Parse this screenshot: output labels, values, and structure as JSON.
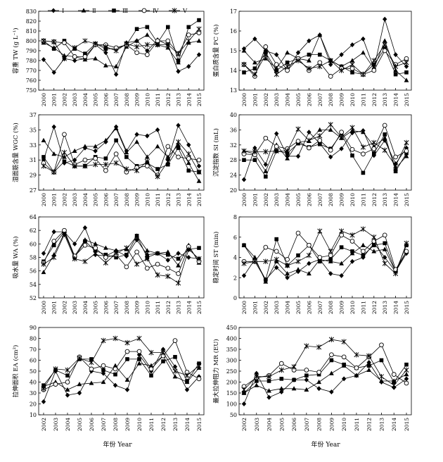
{
  "legend": [
    {
      "label": "Ⅰ",
      "marker": "diamond"
    },
    {
      "label": "Ⅱ",
      "marker": "triangle"
    },
    {
      "label": "Ⅲ",
      "marker": "square"
    },
    {
      "label": "Ⅳ",
      "marker": "circle-open"
    },
    {
      "label": "Ⅴ",
      "marker": "star"
    }
  ],
  "xlabels": {
    "left": "年份 Year",
    "right": "年份 Year"
  },
  "chart_data": [
    {
      "type": "line",
      "ylabel": "容重 TW (g L⁻¹)",
      "ylim": [
        750,
        830
      ],
      "yticks": [
        750,
        760,
        770,
        780,
        790,
        800,
        810,
        820,
        830
      ],
      "x": [
        "2000",
        "2001",
        "2002",
        "2003",
        "2004",
        "2005",
        "2006",
        "2007",
        "2008",
        "2009",
        "2010",
        "2011",
        "2012",
        "2013",
        "2014",
        "2015"
      ],
      "series": [
        {
          "name": "Ⅰ",
          "values": [
            781,
            768,
            782,
            780,
            782,
            796,
            788,
            766,
            798,
            800,
            790,
            801,
            796,
            769,
            774,
            786
          ]
        },
        {
          "name": "Ⅱ",
          "values": [
            798,
            793,
            785,
            784,
            781,
            782,
            775,
            774,
            794,
            800,
            806,
            796,
            793,
            778,
            798,
            800
          ]
        },
        {
          "name": "Ⅲ",
          "values": [
            800,
            792,
            800,
            792,
            787,
            797,
            792,
            792,
            796,
            812,
            814,
            798,
            814,
            780,
            814,
            821
          ]
        },
        {
          "name": "Ⅳ",
          "values": [
            800,
            799,
            798,
            784,
            784,
            796,
            796,
            793,
            796,
            788,
            786,
            800,
            800,
            787,
            806,
            808
          ]
        },
        {
          "name": "Ⅴ",
          "values": [
            800,
            799,
            782,
            793,
            800,
            797,
            794,
            790,
            797,
            794,
            796,
            796,
            796,
            787,
            800,
            812
          ]
        }
      ]
    },
    {
      "type": "line",
      "ylabel": "蛋白质含量 PC (%)",
      "ylim": [
        13,
        17
      ],
      "yticks": [
        13,
        14,
        15,
        16,
        17
      ],
      "x": [
        "2000",
        "2001",
        "2002",
        "2003",
        "2004",
        "2005",
        "2006",
        "2007",
        "2008",
        "2009",
        "2010",
        "2011",
        "2012",
        "2013",
        "2014",
        "2015"
      ],
      "series": [
        {
          "name": "Ⅰ",
          "values": [
            15.1,
            15.6,
            15.0,
            14.8,
            14.0,
            14.9,
            15.5,
            15.8,
            14.3,
            14.8,
            15.3,
            15.6,
            14.1,
            16.6,
            14.8,
            14.2
          ]
        },
        {
          "name": "Ⅱ",
          "values": [
            15.0,
            14.4,
            14.6,
            14.1,
            14.9,
            14.6,
            14.5,
            15.8,
            14.5,
            14.2,
            14.5,
            14.9,
            14.1,
            15.5,
            14.0,
            13.5
          ]
        },
        {
          "name": "Ⅲ",
          "values": [
            13.9,
            14.1,
            14.9,
            14.0,
            14.4,
            14.6,
            14.8,
            14.8,
            14.5,
            14.2,
            13.9,
            13.8,
            14.3,
            15.1,
            13.8,
            13.9
          ]
        },
        {
          "name": "Ⅳ",
          "values": [
            14.3,
            13.7,
            15.2,
            14.3,
            14.0,
            14.6,
            14.0,
            14.4,
            13.7,
            14.1,
            14.1,
            13.8,
            14.0,
            15.0,
            14.3,
            14.6
          ]
        },
        {
          "name": "Ⅴ",
          "values": [
            14.3,
            13.8,
            14.8,
            13.8,
            14.2,
            14.5,
            14.1,
            14.2,
            14.5,
            14.0,
            14.3,
            13.8,
            14.5,
            15.3,
            14.2,
            14.4
          ]
        }
      ]
    },
    {
      "type": "line",
      "ylabel": "湿面筋含量 WGC (%)",
      "ylim": [
        27,
        37
      ],
      "yticks": [
        27,
        29,
        31,
        33,
        35,
        37
      ],
      "x": [
        "2000",
        "2001",
        "2002",
        "2003",
        "2004",
        "2005",
        "2006",
        "2007",
        "2008",
        "2009",
        "2010",
        "2011",
        "2012",
        "2013",
        "2014",
        "2015"
      ],
      "series": [
        {
          "name": "Ⅰ",
          "values": [
            31.0,
            35.4,
            30.6,
            31.0,
            32.6,
            32.2,
            33.4,
            35.4,
            32.2,
            34.4,
            34.2,
            35.0,
            31.0,
            35.6,
            33.0,
            30.2
          ]
        },
        {
          "name": "Ⅱ",
          "values": [
            33.6,
            31.8,
            31.4,
            32.2,
            32.8,
            32.8,
            33.6,
            35.2,
            32.0,
            33.4,
            31.4,
            32.8,
            31.4,
            33.0,
            30.6,
            28.2
          ]
        },
        {
          "name": "Ⅲ",
          "values": [
            31.4,
            29.4,
            30.8,
            30.2,
            30.2,
            31.4,
            31.2,
            33.6,
            31.4,
            30.2,
            30.6,
            29.8,
            30.4,
            32.6,
            29.6,
            29.4
          ]
        },
        {
          "name": "Ⅳ",
          "values": [
            30.6,
            29.4,
            34.4,
            30.4,
            31.0,
            31.2,
            29.6,
            31.8,
            29.4,
            30.0,
            30.2,
            29.0,
            32.8,
            31.4,
            31.2,
            31.0
          ]
        },
        {
          "name": "Ⅴ",
          "values": [
            30.2,
            29.4,
            32.0,
            30.2,
            30.2,
            30.4,
            30.4,
            30.6,
            29.8,
            29.6,
            30.8,
            28.8,
            30.8,
            33.4,
            31.8,
            29.4
          ]
        }
      ]
    },
    {
      "type": "line",
      "ylabel": "沉淀指数 SI (mL)",
      "ylim": [
        20,
        40
      ],
      "yticks": [
        20,
        24,
        28,
        32,
        36,
        40
      ],
      "x": [
        "2000",
        "2001",
        "2002",
        "2003",
        "2004",
        "2005",
        "2006",
        "2007",
        "2008",
        "2009",
        "2010",
        "2011",
        "2012",
        "2013",
        "2014",
        "2015"
      ],
      "series": [
        {
          "name": "Ⅰ",
          "values": [
            22.8,
            31.2,
            26.8,
            35.0,
            29.0,
            29.0,
            35.4,
            32.4,
            28.8,
            31.0,
            35.2,
            35.8,
            29.2,
            33.2,
            27.0,
            31.2
          ]
        },
        {
          "name": "Ⅱ",
          "values": [
            30.4,
            29.6,
            25.0,
            32.0,
            28.4,
            32.8,
            33.0,
            36.0,
            36.0,
            33.8,
            35.8,
            35.4,
            31.6,
            33.8,
            25.8,
            29.0
          ]
        },
        {
          "name": "Ⅲ",
          "values": [
            28.0,
            28.0,
            23.6,
            30.4,
            29.8,
            32.4,
            31.4,
            32.2,
            31.0,
            35.0,
            29.2,
            24.6,
            29.8,
            34.8,
            25.0,
            29.8
          ]
        },
        {
          "name": "Ⅳ",
          "values": [
            29.6,
            29.4,
            33.8,
            31.6,
            31.0,
            33.0,
            31.2,
            33.2,
            30.6,
            35.4,
            30.8,
            29.6,
            31.0,
            37.2,
            28.8,
            30.4
          ]
        },
        {
          "name": "Ⅴ",
          "values": [
            30.4,
            30.2,
            30.2,
            30.4,
            30.4,
            36.2,
            33.2,
            34.4,
            37.4,
            34.0,
            36.6,
            31.4,
            32.6,
            30.6,
            26.4,
            32.6
          ]
        }
      ]
    },
    {
      "type": "line",
      "ylabel": "吸水量 WA (%)",
      "ylim": [
        52,
        64
      ],
      "yticks": [
        52,
        54,
        56,
        58,
        60,
        62,
        64
      ],
      "x": [
        "2000",
        "2001",
        "2002",
        "2003",
        "2004",
        "2005",
        "2006",
        "2007",
        "2008",
        "2009",
        "2010",
        "2011",
        "2012",
        "2013",
        "2014",
        "2015"
      ],
      "series": [
        {
          "name": "Ⅰ",
          "values": [
            58.6,
            61.8,
            61.8,
            60.0,
            62.4,
            58.4,
            58.2,
            59.0,
            58.2,
            60.6,
            58.4,
            58.6,
            57.6,
            58.6,
            58.0,
            57.8
          ]
        },
        {
          "name": "Ⅱ",
          "values": [
            55.8,
            58.4,
            61.6,
            58.2,
            60.6,
            60.0,
            59.4,
            59.0,
            59.2,
            61.2,
            59.0,
            58.6,
            58.8,
            56.8,
            59.8,
            57.2
          ]
        },
        {
          "name": "Ⅲ",
          "values": [
            57.4,
            59.8,
            61.8,
            58.0,
            60.4,
            59.0,
            58.4,
            58.0,
            58.4,
            61.2,
            58.0,
            58.6,
            58.4,
            57.8,
            59.2,
            59.4
          ]
        },
        {
          "name": "Ⅳ",
          "values": [
            57.2,
            60.4,
            62.0,
            58.2,
            59.8,
            59.4,
            58.0,
            58.4,
            56.6,
            58.8,
            56.4,
            57.0,
            56.4,
            55.6,
            59.6,
            57.4
          ]
        },
        {
          "name": "Ⅴ",
          "values": [
            57.0,
            58.0,
            61.4,
            57.8,
            57.4,
            58.6,
            57.2,
            58.6,
            59.4,
            57.0,
            57.8,
            55.4,
            55.2,
            54.2,
            59.2,
            57.8
          ]
        }
      ]
    },
    {
      "type": "line",
      "ylabel": "稳定时间 ST (min)",
      "ylim": [
        0,
        8
      ],
      "yticks": [
        0,
        2,
        4,
        6,
        8
      ],
      "x": [
        "2000",
        "2001",
        "2002",
        "2003",
        "2004",
        "2005",
        "2006",
        "2007",
        "2008",
        "2009",
        "2010",
        "2011",
        "2012",
        "2013",
        "2014",
        "2015"
      ],
      "series": [
        {
          "name": "Ⅰ",
          "values": [
            2.2,
            3.8,
            1.8,
            3.0,
            2.0,
            2.6,
            3.4,
            3.8,
            2.4,
            2.2,
            3.6,
            4.0,
            5.4,
            4.0,
            2.6,
            4.4
          ]
        },
        {
          "name": "Ⅱ",
          "values": [
            5.2,
            4.0,
            1.6,
            3.6,
            2.4,
            2.8,
            2.4,
            3.8,
            3.6,
            3.4,
            4.4,
            5.2,
            4.6,
            4.8,
            2.6,
            4.6
          ]
        },
        {
          "name": "Ⅲ",
          "values": [
            5.2,
            3.6,
            1.8,
            5.8,
            3.2,
            4.2,
            5.2,
            3.6,
            3.8,
            5.0,
            4.6,
            4.2,
            5.2,
            5.4,
            2.6,
            5.2
          ]
        },
        {
          "name": "Ⅳ",
          "values": [
            3.6,
            3.6,
            5.0,
            4.6,
            3.8,
            6.4,
            5.2,
            4.0,
            4.2,
            6.2,
            5.6,
            4.6,
            5.6,
            6.2,
            2.8,
            4.6
          ]
        },
        {
          "name": "Ⅴ",
          "values": [
            3.4,
            3.6,
            3.6,
            3.8,
            3.2,
            3.6,
            4.2,
            6.6,
            4.6,
            6.6,
            6.2,
            6.8,
            6.0,
            3.4,
            2.4,
            5.4
          ]
        }
      ]
    },
    {
      "type": "line",
      "ylabel": "拉伸面积 EA (cm²)",
      "ylim": [
        10,
        90
      ],
      "yticks": [
        10,
        20,
        30,
        40,
        50,
        60,
        70,
        80,
        90
      ],
      "x": [
        "2002",
        "2003",
        "2004",
        "2005",
        "2006",
        "2007",
        "2008",
        "2009",
        "2010",
        "2011",
        "2012",
        "2013",
        "2014",
        "2015"
      ],
      "series": [
        {
          "name": "Ⅰ",
          "values": [
            22,
            50,
            28,
            30,
            50,
            48,
            37,
            33,
            65,
            50,
            70,
            54,
            33,
            45
          ]
        },
        {
          "name": "Ⅱ",
          "values": [
            36,
            40,
            33,
            38,
            39,
            40,
            55,
            42,
            57,
            55,
            64,
            45,
            40,
            53
          ]
        },
        {
          "name": "Ⅲ",
          "values": [
            37,
            51,
            46,
            61,
            61,
            51,
            47,
            61,
            61,
            46,
            59,
            63,
            41,
            57
          ]
        },
        {
          "name": "Ⅳ",
          "values": [
            33,
            38,
            40,
            63,
            52,
            55,
            52,
            68,
            68,
            52,
            64,
            78,
            49,
            43
          ]
        },
        {
          "name": "Ⅴ",
          "values": [
            34,
            52,
            51,
            62,
            58,
            78,
            80,
            76,
            80,
            67,
            67,
            50,
            46,
            55
          ]
        }
      ]
    },
    {
      "type": "line",
      "ylabel": "最大拉伸阻力 MR (EU)",
      "ylim": [
        50,
        450
      ],
      "yticks": [
        50,
        100,
        150,
        200,
        250,
        300,
        350,
        400,
        450
      ],
      "x": [
        "2002",
        "2003",
        "2004",
        "2005",
        "2006",
        "2007",
        "2008",
        "2009",
        "2010",
        "2011",
        "2012",
        "2013",
        "2014",
        "2015"
      ],
      "series": [
        {
          "name": "Ⅰ",
          "values": [
            100,
            240,
            130,
            155,
            210,
            210,
            170,
            155,
            215,
            230,
            290,
            200,
            175,
            215
          ]
        },
        {
          "name": "Ⅱ",
          "values": [
            150,
            185,
            160,
            170,
            170,
            165,
            200,
            240,
            275,
            230,
            255,
            205,
            205,
            235
          ]
        },
        {
          "name": "Ⅲ",
          "values": [
            150,
            205,
            205,
            215,
            210,
            230,
            235,
            300,
            280,
            265,
            275,
            300,
            200,
            280
          ]
        },
        {
          "name": "Ⅳ",
          "values": [
            180,
            220,
            230,
            285,
            255,
            255,
            245,
            325,
            315,
            265,
            315,
            370,
            235,
            195
          ]
        },
        {
          "name": "Ⅴ",
          "values": [
            165,
            225,
            225,
            255,
            270,
            365,
            360,
            395,
            385,
            325,
            320,
            225,
            185,
            255
          ]
        }
      ]
    }
  ]
}
